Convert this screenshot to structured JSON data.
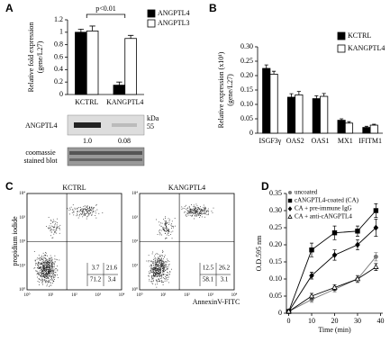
{
  "chart_data": [
    {
      "type": "bar",
      "panel": "A",
      "annotation": "p<0.01",
      "ylabel": [
        "Relative fold expression",
        "(gene/L27)"
      ],
      "categories": [
        "KCTRL",
        "KANGPTL4"
      ],
      "series": [
        {
          "name": "ANGPTL4",
          "color": "#000000",
          "values": [
            1.0,
            0.15
          ],
          "errors": [
            0.05,
            0.05
          ]
        },
        {
          "name": "ANGPTL3",
          "color": "#ffffff",
          "values": [
            1.02,
            0.9
          ],
          "errors": [
            0.08,
            0.05
          ]
        }
      ],
      "ylim": [
        0,
        1.2
      ],
      "yticks": [
        0,
        0.2,
        0.4,
        0.6,
        0.8,
        1,
        1.2
      ]
    },
    {
      "type": "bar",
      "panel": "B",
      "ylabel": [
        "Relative expression (x10¹)",
        "(gene/L27)"
      ],
      "categories": [
        "ISGF3γ",
        "OAS2",
        "OAS1",
        "MX1",
        "IFITM1"
      ],
      "series": [
        {
          "name": "KCTRL",
          "color": "#000000",
          "values": [
            0.225,
            0.125,
            0.12,
            0.045,
            0.02
          ],
          "errors": [
            0.012,
            0.012,
            0.01,
            0.005,
            0.004
          ]
        },
        {
          "name": "KANGPTL4",
          "color": "#ffffff",
          "values": [
            0.205,
            0.133,
            0.128,
            0.035,
            0.028
          ],
          "errors": [
            0.01,
            0.012,
            0.01,
            0.005,
            0.003
          ]
        }
      ],
      "ylim": [
        0,
        0.3
      ],
      "yticks": [
        0,
        0.05,
        {
          "value": 0.1,
          "label": "0.10"
        },
        0.15,
        {
          "value": 0.2,
          "label": "0.20"
        },
        0.25,
        {
          "value": 0.3,
          "label": "0.30"
        }
      ]
    },
    {
      "type": "line",
      "panel": "D",
      "ylabel": [
        "O.D.595 nm"
      ],
      "xlabel": "Time (min)",
      "x": [
        0,
        10,
        20,
        30,
        38
      ],
      "series": [
        {
          "name": "uncoated",
          "color": "#777777",
          "marker": "circle",
          "values": [
            0.005,
            0.04,
            0.07,
            0.1,
            0.165
          ],
          "errors": [
            0.004,
            0.008,
            0.008,
            0.01,
            0.012
          ]
        },
        {
          "name": "cANGPTL4-coated (CA)",
          "color": "#000000",
          "marker": "square",
          "values": [
            0.005,
            0.185,
            0.235,
            0.24,
            0.3
          ],
          "errors": [
            0.004,
            0.02,
            0.02,
            0.015,
            0.02
          ]
        },
        {
          "name": "CA + pre-immune IgG",
          "color": "#000000",
          "marker": "diamond",
          "values": [
            0.005,
            0.11,
            0.17,
            0.2,
            0.25
          ],
          "errors": [
            0.004,
            0.01,
            0.015,
            0.015,
            0.025
          ]
        },
        {
          "name": "CA + anti-cANGPTL4",
          "color": "#000000",
          "marker": "triangle",
          "values": [
            0.005,
            0.05,
            0.075,
            0.1,
            0.135
          ],
          "errors": [
            0.004,
            0.008,
            0.008,
            0.01,
            0.01
          ]
        }
      ],
      "xlim": [
        -1,
        41
      ],
      "xticks": [
        0,
        10,
        20,
        30,
        40
      ],
      "ylim": [
        0,
        0.35
      ],
      "yticks": [
        0,
        0.05,
        {
          "value": 0.1,
          "label": "0.10"
        },
        0.15,
        {
          "value": 0.2,
          "label": "0.20"
        },
        0.25,
        {
          "value": 0.3,
          "label": "0.30"
        },
        0.35
      ]
    }
  ],
  "blot": {
    "protein": "ANGPTL4",
    "unit": "kDa",
    "size": "55",
    "ratios": [
      "1.0",
      "0.08"
    ],
    "stain": [
      "coomassie",
      "stained blot"
    ]
  },
  "flow": {
    "panel": "C",
    "ylabel": "propidium iodide",
    "xlabel": "AnnexinV-FITC",
    "ticks": [
      "10⁰",
      "10¹",
      "10²",
      "10³",
      "10⁴"
    ],
    "plots": [
      {
        "title": "KCTRL",
        "quadrants": [
          "3.7",
          "21.6",
          "71.2",
          "3.4"
        ]
      },
      {
        "title": "KANGPTL4",
        "quadrants": [
          "12.5",
          "26.2",
          "58.1",
          "3.1"
        ]
      }
    ]
  }
}
